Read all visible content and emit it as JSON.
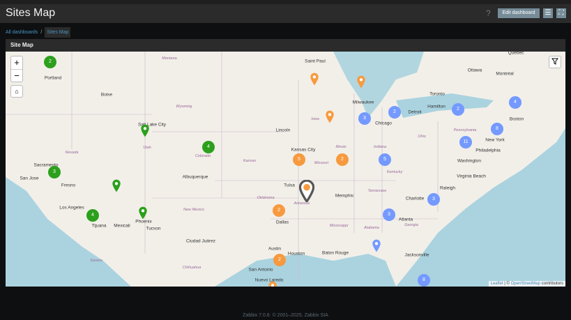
{
  "header": {
    "title": "Sites Map",
    "help": "?",
    "edit_label": "Edit dashboard",
    "menu_icon": "hamburger-icon",
    "fullscreen_icon": "expand-icon"
  },
  "breadcrumb": {
    "root": "All dashboards",
    "separator": "/",
    "current": "Sites Map"
  },
  "widget": {
    "title": "Site Map",
    "controls": {
      "zoom_in": "+",
      "zoom_out": "−",
      "home_icon": "home-icon",
      "filter_icon": "filter-icon"
    },
    "attribution": {
      "leaflet": "Leaflet",
      "sep": " | © ",
      "osm": "OpenStreetMap",
      "suffix": " contributors"
    },
    "colors": {
      "ok": "#2ca01c",
      "warning": "#f79a3f",
      "info": "#7499ff",
      "selected": "#555555",
      "water": "#aad3df"
    },
    "clusters": [
      {
        "count": "2",
        "status": "ok"
      },
      {
        "count": "4",
        "status": "ok"
      },
      {
        "count": "3",
        "status": "ok"
      },
      {
        "count": "4",
        "status": "ok"
      },
      {
        "count": "5",
        "status": "warning"
      },
      {
        "count": "2",
        "status": "warning"
      },
      {
        "count": "2",
        "status": "warning"
      },
      {
        "count": "2",
        "status": "warning"
      },
      {
        "count": "3",
        "status": "info"
      },
      {
        "count": "2",
        "status": "info"
      },
      {
        "count": "2",
        "status": "info"
      },
      {
        "count": "4",
        "status": "info"
      },
      {
        "count": "8",
        "status": "info"
      },
      {
        "count": "11",
        "status": "info"
      },
      {
        "count": "5",
        "status": "info"
      },
      {
        "count": "3",
        "status": "info"
      },
      {
        "count": "3",
        "status": "info"
      },
      {
        "count": "8",
        "status": "info"
      }
    ],
    "pins": [
      {
        "status": "ok"
      },
      {
        "status": "ok"
      },
      {
        "status": "ok"
      },
      {
        "status": "warning"
      },
      {
        "status": "warning"
      },
      {
        "status": "warning"
      },
      {
        "status": "warning"
      },
      {
        "status": "info"
      },
      {
        "status": "selected"
      }
    ],
    "cities": [
      "Portland",
      "Boise",
      "Salt Lake City",
      "Sacramento",
      "San Jose",
      "Fresno",
      "Los Angeles",
      "Tijuana",
      "Mexicali",
      "Phoenix",
      "Tucson",
      "Albuquerque",
      "Ciudad Juárez",
      "Lincoln",
      "Kansas City",
      "Tulsa",
      "Memphis",
      "Dallas",
      "Austin",
      "Houston",
      "San Antonio",
      "Baton Rouge",
      "Nuevo Laredo",
      "Saint Paul",
      "Milwaukee",
      "Chicago",
      "Detroit",
      "Toronto",
      "Hamilton",
      "Ottawa",
      "Montréal",
      "Québec",
      "Boston",
      "New York",
      "Philadelphia",
      "Washington",
      "Virginia Beach",
      "Raleigh",
      "Charlotte",
      "Atlanta",
      "Jacksonville"
    ],
    "states": [
      "Montana",
      "Wyoming",
      "Colorado",
      "Utah",
      "Nevada",
      "New Mexico",
      "Kansas",
      "Oklahoma",
      "Iowa",
      "Illinois",
      "Missouri",
      "Indiana",
      "Kentucky",
      "Tennessee",
      "Arkansas",
      "Mississippi",
      "Alabama",
      "Georgia",
      "Ohio",
      "Pennsylvania",
      "Chihuahua",
      "Sonora"
    ]
  },
  "footer": {
    "text": "Zabbix 7.0.8. © 2001–2025, Zabbix SIA"
  }
}
